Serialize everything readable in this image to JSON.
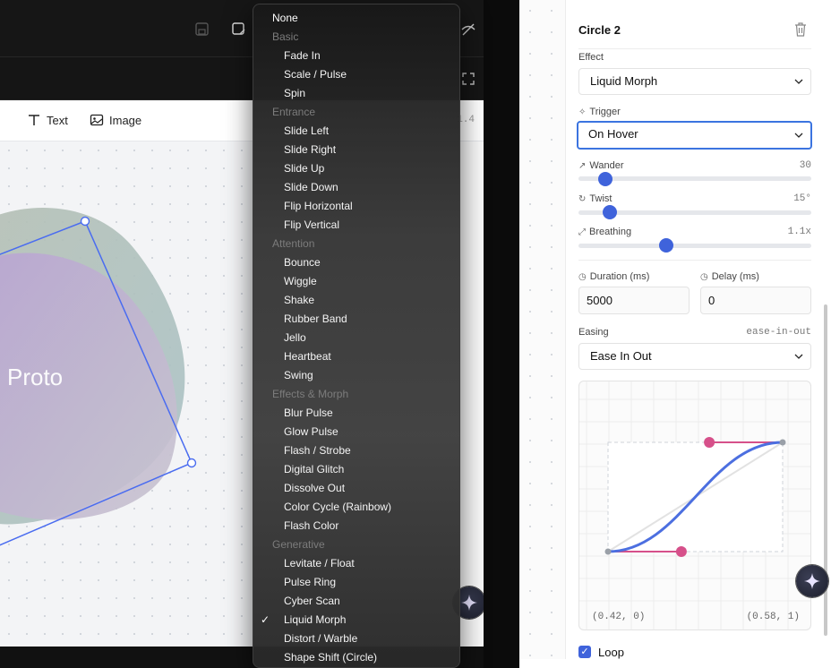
{
  "canvas": {
    "toolbar": {
      "text_tool": "Text",
      "image_tool": "Image"
    },
    "proto_label": "Proto",
    "zoom_fragment": "1.4"
  },
  "menu": {
    "none_option": "None",
    "groups": [
      {
        "label": "Basic",
        "items": [
          "Fade In",
          "Scale / Pulse",
          "Spin"
        ]
      },
      {
        "label": "Entrance",
        "items": [
          "Slide Left",
          "Slide Right",
          "Slide Up",
          "Slide Down",
          "Flip Horizontal",
          "Flip Vertical"
        ]
      },
      {
        "label": "Attention",
        "items": [
          "Bounce",
          "Wiggle",
          "Shake",
          "Rubber Band",
          "Jello",
          "Heartbeat",
          "Swing"
        ]
      },
      {
        "label": "Effects & Morph",
        "items": [
          "Blur Pulse",
          "Glow Pulse",
          "Flash / Strobe",
          "Digital Glitch",
          "Dissolve Out",
          "Color Cycle (Rainbow)",
          "Flash Color"
        ]
      },
      {
        "label": "Generative",
        "items": [
          "Levitate / Float",
          "Pulse Ring",
          "Cyber Scan",
          "Liquid Morph",
          "Distort / Warble",
          "Shape Shift (Circle)"
        ]
      }
    ],
    "selected": "Liquid Morph"
  },
  "panel": {
    "title": "Circle 2",
    "effect": {
      "label": "Effect",
      "value": "Liquid Morph"
    },
    "trigger": {
      "label": "Trigger",
      "value": "On Hover"
    },
    "wander": {
      "label": "Wander",
      "value": "30",
      "fraction": 0.09
    },
    "twist": {
      "label": "Twist",
      "value": "15°",
      "fraction": 0.11
    },
    "breathing": {
      "label": "Breathing",
      "value": "1.1x",
      "fraction": 0.37
    },
    "duration": {
      "label": "Duration (ms)",
      "value": "5000"
    },
    "delay": {
      "label": "Delay (ms)",
      "value": "0"
    },
    "easing": {
      "label": "Easing",
      "code": "ease-in-out",
      "value": "Ease In Out"
    },
    "curve": {
      "p1_label": "(0.42, 0)",
      "p2_label": "(0.58, 1)",
      "p1": [
        0.42,
        0
      ],
      "p2": [
        0.58,
        1
      ]
    },
    "loop": {
      "label": "Loop",
      "checked": true
    }
  },
  "colors": {
    "accent": "#3f63db",
    "handle": "#d6508a",
    "focus": "#3b74e0"
  }
}
